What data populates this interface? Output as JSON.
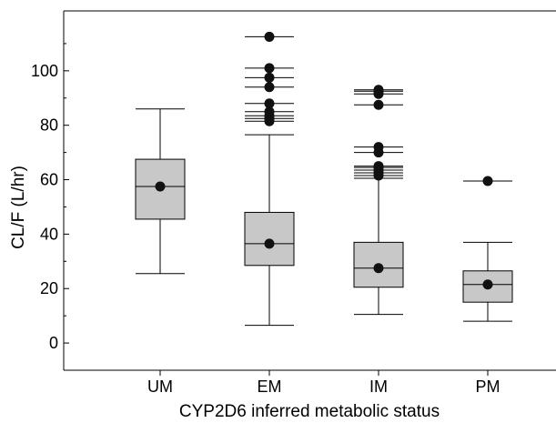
{
  "chart_data": {
    "type": "box",
    "xlabel": "CYP2D6 inferred metabolic status",
    "ylabel": "CL/F (L/hr)",
    "ylim": [
      -10,
      122
    ],
    "yticks": [
      0,
      20,
      40,
      60,
      80,
      100
    ],
    "grid": false,
    "categories": [
      "UM",
      "EM",
      "IM",
      "PM"
    ],
    "boxes": [
      {
        "category": "UM",
        "whisker_low": 25.5,
        "q1": 45.5,
        "median": 57.5,
        "q3": 67.5,
        "whisker_high": 86,
        "mean": 57.5,
        "outliers": []
      },
      {
        "category": "EM",
        "whisker_low": 6.5,
        "q1": 28.5,
        "median": 36.5,
        "q3": 48,
        "whisker_high": 76.5,
        "mean": 36.5,
        "outliers": [
          81.5,
          82.5,
          83.5,
          85,
          88,
          94,
          97.5,
          101,
          112.5
        ]
      },
      {
        "category": "IM",
        "whisker_low": 10.5,
        "q1": 20.5,
        "median": 27.5,
        "q3": 37,
        "whisker_high": 60.5,
        "mean": 27.5,
        "outliers": [
          61.5,
          62.5,
          63.5,
          64.5,
          65,
          70,
          72,
          87.5,
          91.5,
          92.5,
          93
        ]
      },
      {
        "category": "PM",
        "whisker_low": 8,
        "q1": 15,
        "median": 21.5,
        "q3": 26.5,
        "whisker_high": 37,
        "mean": 21.5,
        "outliers": [
          59.5
        ]
      }
    ],
    "colors": {
      "box_fill": "#c8c8c8",
      "stroke": "#000000",
      "marker": "#111111"
    }
  }
}
